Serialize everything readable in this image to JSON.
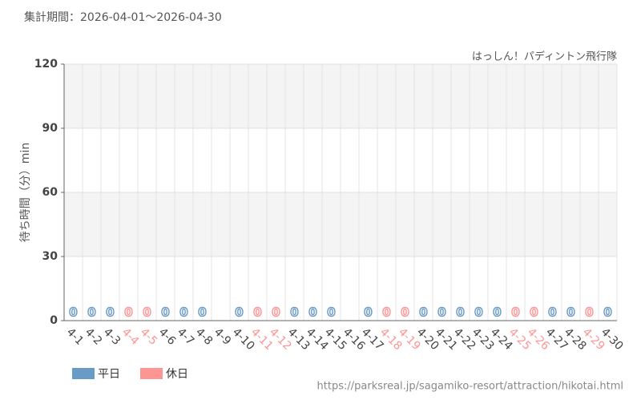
{
  "chart_data": {
    "type": "bar",
    "title": "集計期間：2026-04-01～2026-04-30",
    "subtitle": "はっしん！パディントン飛行隊",
    "y_label": "待ち時間（分）min",
    "source": "https://parksreal.jp/sagamiko-resort/attraction/hikotai.html",
    "categories": [
      "4-1",
      "4-2",
      "4-3",
      "4-4",
      "4-5",
      "4-6",
      "4-7",
      "4-8",
      "4-9",
      "4-10",
      "4-11",
      "4-12",
      "4-13",
      "4-14",
      "4-15",
      "4-16",
      "4-17",
      "4-18",
      "4-19",
      "4-20",
      "4-21",
      "4-22",
      "4-23",
      "4-24",
      "4-25",
      "4-26",
      "4-27",
      "4-28",
      "4-29",
      "4-30"
    ],
    "series": [
      {
        "name": "平日",
        "color": "#6a9bc6",
        "values": [
          0,
          0,
          0,
          null,
          null,
          0,
          0,
          0,
          null,
          0,
          null,
          null,
          0,
          0,
          0,
          null,
          0,
          null,
          null,
          0,
          0,
          0,
          0,
          0,
          null,
          null,
          0,
          0,
          null,
          0
        ]
      },
      {
        "name": "休日",
        "color": "#fd9595",
        "values": [
          null,
          null,
          null,
          0,
          0,
          null,
          null,
          null,
          null,
          null,
          0,
          0,
          null,
          null,
          null,
          null,
          null,
          0,
          0,
          null,
          null,
          null,
          null,
          null,
          0,
          0,
          null,
          null,
          0,
          null
        ]
      }
    ],
    "ylim": [
      0,
      120
    ],
    "yticks": [
      0,
      30,
      60,
      90,
      120
    ],
    "grid": true
  }
}
